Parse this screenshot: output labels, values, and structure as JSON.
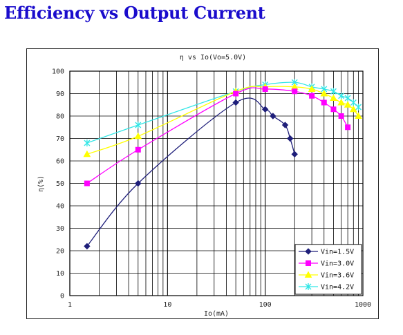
{
  "page": {
    "heading": "Efficiency vs Output Current"
  },
  "chart_data": {
    "type": "line",
    "title": "η vs Io(Vo=5.0V)",
    "xlabel": "Io(mA)",
    "ylabel": "η(%)",
    "xscale": "log",
    "xlim": [
      1,
      1000
    ],
    "ylim": [
      0,
      100
    ],
    "xticks": [
      1,
      10,
      100,
      1000
    ],
    "xtick_labels": [
      "1",
      "10",
      "100",
      "1000"
    ],
    "yticks": [
      0,
      10,
      20,
      30,
      40,
      50,
      60,
      70,
      80,
      90,
      100
    ],
    "grid": true,
    "legend_position": "bottom-right",
    "series": [
      {
        "name": "Vin=1.5V",
        "color": "#1f1f7a",
        "marker": "diamond",
        "x": [
          1.5,
          5,
          50,
          100,
          120,
          160,
          180,
          200
        ],
        "y": [
          22,
          50,
          86,
          83,
          80,
          76,
          70,
          63
        ]
      },
      {
        "name": "Vin=3.0V",
        "color": "#ff00ff",
        "marker": "square",
        "x": [
          1.5,
          5,
          50,
          100,
          200,
          300,
          400,
          500,
          600,
          700
        ],
        "y": [
          50,
          65,
          90,
          92,
          91,
          89,
          86,
          83,
          80,
          75
        ]
      },
      {
        "name": "Vin=3.6V",
        "color": "#ffff00",
        "marker": "triangle",
        "x": [
          1.5,
          5,
          50,
          100,
          200,
          300,
          400,
          500,
          600,
          700,
          800,
          900
        ],
        "y": [
          63,
          71,
          91,
          93,
          93,
          92,
          90,
          88,
          86,
          85,
          83,
          80
        ]
      },
      {
        "name": "Vin=4.2V",
        "color": "#33e6e6",
        "marker": "x",
        "x": [
          1.5,
          5,
          50,
          100,
          200,
          300,
          400,
          500,
          600,
          700,
          800,
          900
        ],
        "y": [
          68,
          76,
          91,
          94,
          95,
          93,
          92,
          91,
          89,
          88,
          86,
          84
        ]
      }
    ]
  }
}
